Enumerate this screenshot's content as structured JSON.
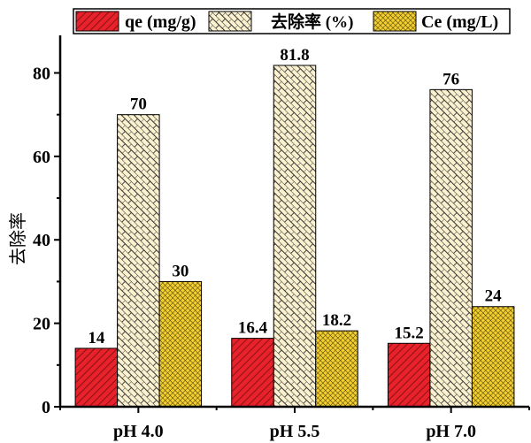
{
  "chart_data": {
    "type": "bar",
    "categories": [
      "pH 4.0",
      "pH 5.5",
      "pH 7.0"
    ],
    "series": [
      {
        "name": "qe (mg/g)",
        "values": [
          14,
          16.4,
          15.2
        ],
        "color": "#e8212b",
        "pattern": "diagonal-hatch"
      },
      {
        "name": "去除率 (%)",
        "values": [
          70,
          81.8,
          76
        ],
        "color": "#fbf1cf",
        "pattern": "brick-hatch"
      },
      {
        "name": "Ce (mg/L)",
        "values": [
          30,
          18.2,
          24
        ],
        "color": "#f2cf2e",
        "pattern": "crosshatch"
      }
    ],
    "data_labels": [
      [
        "14",
        "70",
        "30"
      ],
      [
        "16.4",
        "81.8",
        "18.2"
      ],
      [
        "15.2",
        "76",
        "24"
      ]
    ],
    "xlabel": "",
    "ylabel": "去除率",
    "ylim": [
      0,
      89
    ],
    "yticks": [
      "0",
      "20",
      "40",
      "60",
      "80"
    ],
    "grid": false,
    "legend_position": "top"
  }
}
